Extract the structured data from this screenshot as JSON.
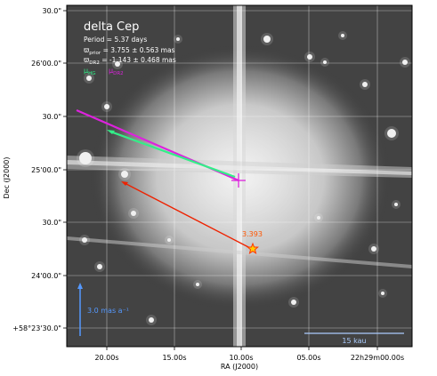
{
  "chart_data": {
    "type": "scatter",
    "title": "delta Cep",
    "xlabel": "RA (J2000)",
    "ylabel": "Dec (J2000)",
    "grid": true,
    "info_lines": [
      {
        "base": "Period =",
        "value": "  5.37 days"
      },
      {
        "base": "ϖ",
        "sub": "prior",
        "value": " = 3.755 ± 0.563 mas"
      },
      {
        "base": "ϖ",
        "sub": "DR2",
        "value": " = -1.143 ± 0.468 mas"
      }
    ],
    "legend": [
      {
        "base": "μ",
        "sub": "HG",
        "color": "#33ee88"
      },
      {
        "base": "μ",
        "sub": "DR2",
        "color": "#dd22dd"
      }
    ],
    "x_ticks": [
      "20.00s",
      "15.00s",
      "10.00s",
      "05.00s",
      "22h29m00.00s"
    ],
    "y_ticks": [
      "30.0\"",
      "26'00.0\"",
      "30.0\"",
      "25'00.0\"",
      "30.0\"",
      "24'00.0\"",
      "+58°23'30.0\""
    ],
    "companion": {
      "label": "3.393",
      "color": "#ff5500"
    },
    "scale_arrow": {
      "label": "3.0 mas a⁻¹",
      "color": "#5599ff"
    },
    "scale_bar": {
      "label": "15 kau",
      "color": "#aaccff"
    },
    "colors": {
      "hg": "#33ee88",
      "dr2": "#dd22dd",
      "red": "#ee2200",
      "star_fill": "#ffcc00",
      "star_edge": "#ff3300",
      "plus": "#dd22dd"
    }
  }
}
